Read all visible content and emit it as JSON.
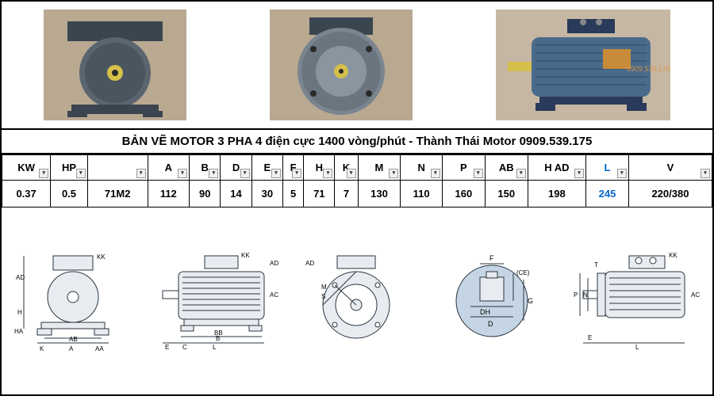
{
  "title": "BẢN VẼ MOTOR 3 PHA 4 điện cực 1400 vòng/phút - Thành Thái Motor 0909.539.175",
  "columns": [
    "KW",
    "HP",
    "",
    "A",
    "B",
    "D",
    "E",
    "F",
    "H",
    "K",
    "M",
    "N",
    "P",
    "AB",
    "H AD",
    "L",
    "V"
  ],
  "blue_column_index": 15,
  "row": [
    "0.37",
    "0.5",
    "71M2",
    "112",
    "90",
    "14",
    "30",
    "5",
    "71",
    "7",
    "130",
    "110",
    "160",
    "150",
    "198",
    "245",
    "220/380"
  ],
  "colors": {
    "border": "#000000",
    "background": "#ffffff",
    "motor_grey": "#5a6570",
    "motor_blue": "#4a6a8a",
    "shaft_yellow": "#d4c04a",
    "wood": "#8b6f47",
    "blue_text": "#0066cc",
    "diagram_grey": "#e8ecf0",
    "diagram_line": "#2a3540"
  },
  "photos": [
    {
      "name": "motor-front-view",
      "type": "front"
    },
    {
      "name": "motor-flange-view",
      "type": "flange"
    },
    {
      "name": "motor-side-view",
      "type": "side"
    }
  ],
  "diagrams": [
    {
      "name": "motor-front-dims",
      "labels": [
        "AD",
        "H",
        "HA",
        "K",
        "A",
        "AA",
        "AB",
        "KK"
      ]
    },
    {
      "name": "motor-side-dims",
      "labels": [
        "E",
        "C",
        "B",
        "BB",
        "L",
        "AD",
        "AC",
        "KK"
      ]
    },
    {
      "name": "motor-flange-dims",
      "labels": [
        "M",
        "S",
        "AD"
      ]
    },
    {
      "name": "motor-shaft-dims",
      "labels": [
        "F",
        "(CE)",
        "DH",
        "D",
        "G"
      ]
    },
    {
      "name": "motor-flange-side-dims",
      "labels": [
        "T",
        "P",
        "N",
        "E",
        "L",
        "KK",
        "AC"
      ]
    }
  ]
}
